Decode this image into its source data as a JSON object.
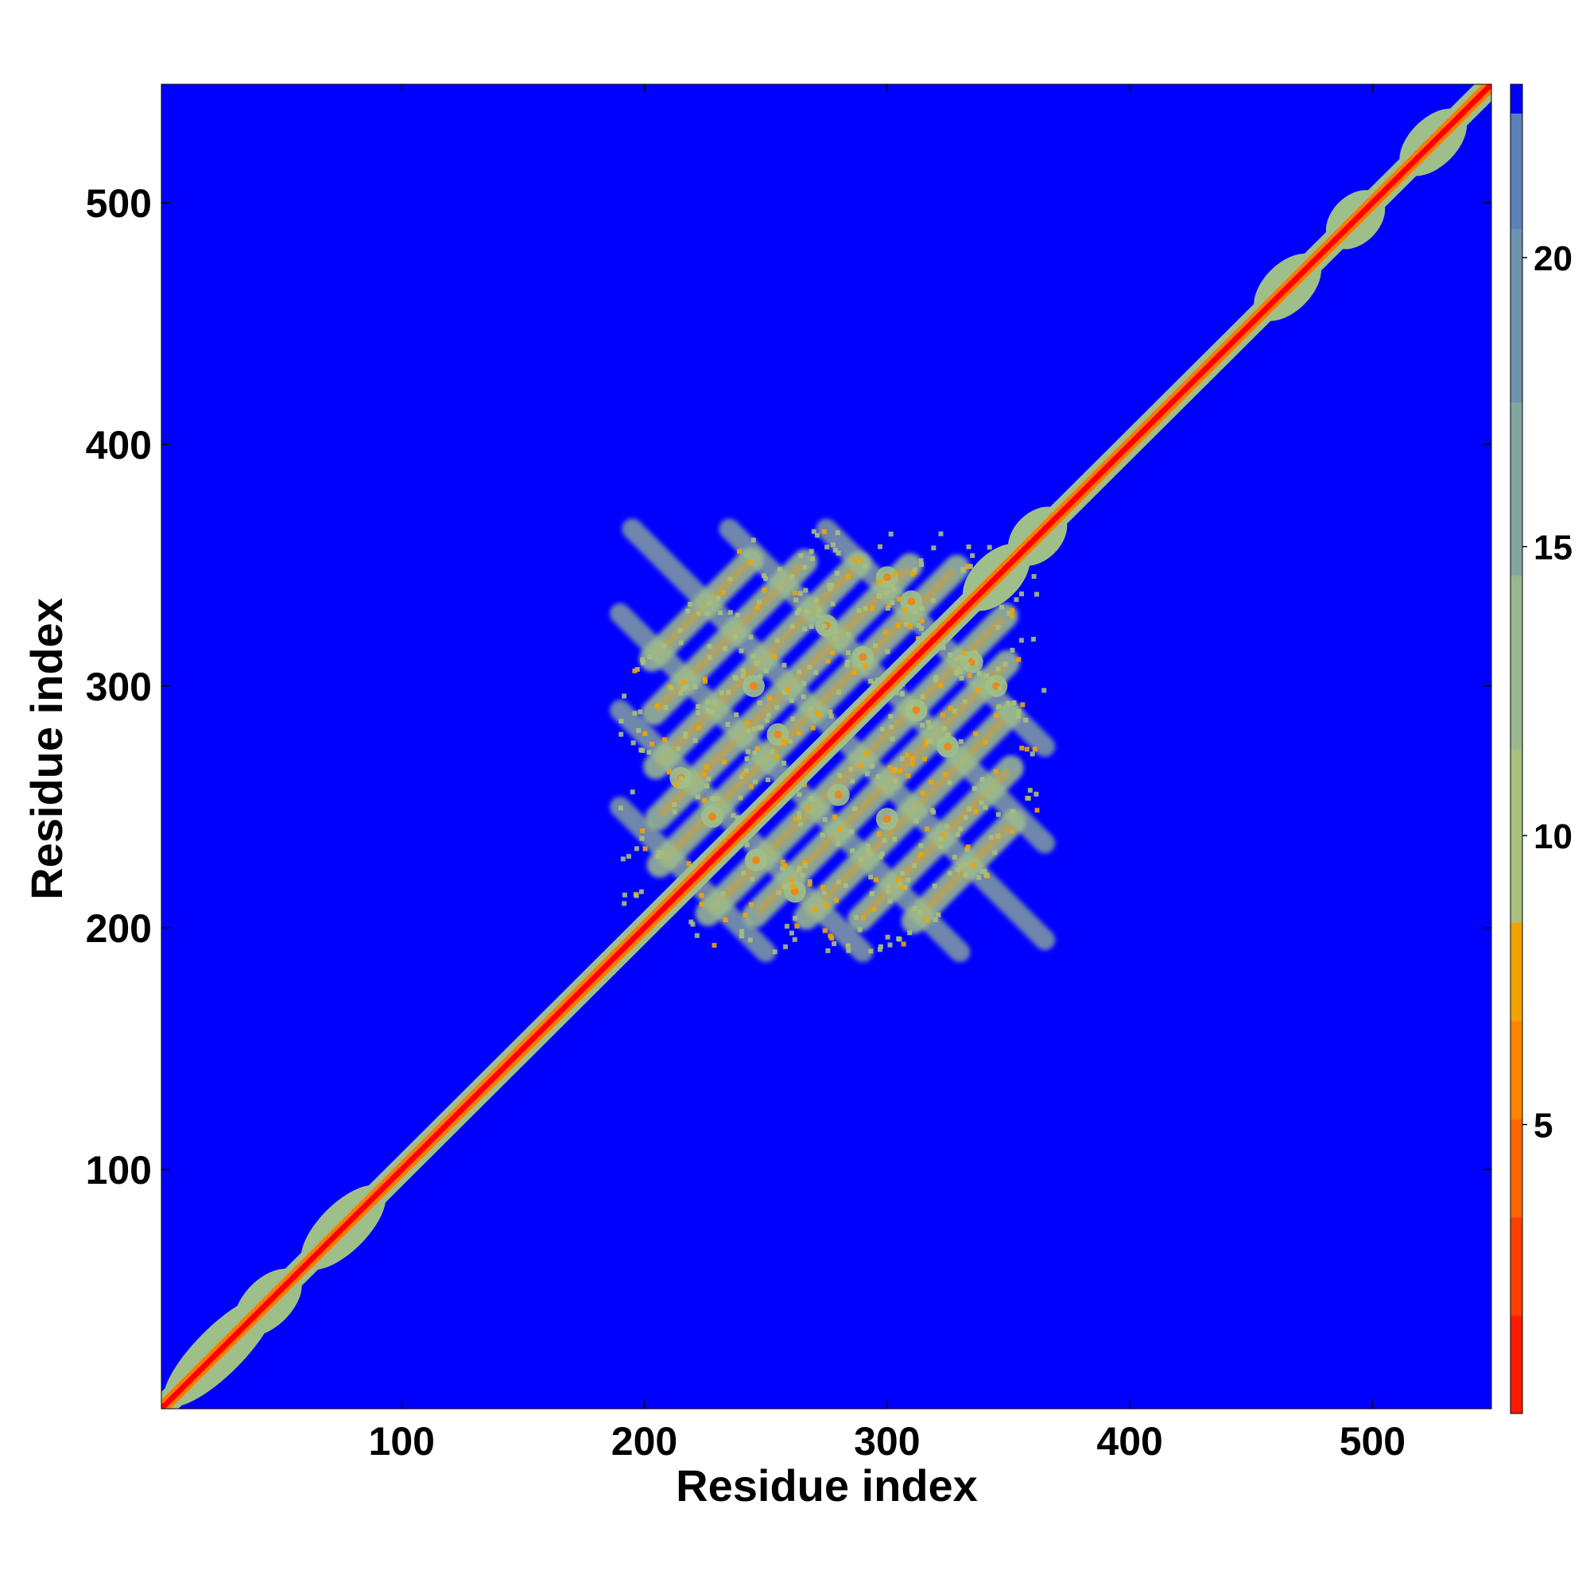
{
  "chart_data": {
    "type": "heatmap",
    "title": "",
    "xlabel": "Residue index",
    "ylabel": "Residue index",
    "xlim": [
      1,
      549
    ],
    "ylim": [
      1,
      549
    ],
    "xticks": [
      100,
      200,
      300,
      400,
      500
    ],
    "yticks": [
      100,
      200,
      300,
      400,
      500
    ],
    "grid": false,
    "colorbar": {
      "ticks": [
        5,
        10,
        15,
        20
      ],
      "range": [
        0,
        23
      ],
      "levels": [
        {
          "from": 0,
          "to": 1.7,
          "color": "#ff1a00"
        },
        {
          "from": 1.7,
          "to": 3.4,
          "color": "#ff3f00"
        },
        {
          "from": 3.4,
          "to": 5.1,
          "color": "#ff6600"
        },
        {
          "from": 5.1,
          "to": 6.8,
          "color": "#ff8400"
        },
        {
          "from": 6.8,
          "to": 8.5,
          "color": "#f2a300"
        },
        {
          "from": 8.5,
          "to": 11.5,
          "color": "#a8c07c"
        },
        {
          "from": 11.5,
          "to": 14.5,
          "color": "#99b88e"
        },
        {
          "from": 14.5,
          "to": 17.5,
          "color": "#82a7a0"
        },
        {
          "from": 17.5,
          "to": 20.5,
          "color": "#6c94b0"
        },
        {
          "from": 20.5,
          "to": 22.5,
          "color": "#5a82b8"
        },
        {
          "from": 22.5,
          "to": 23,
          "color": "#0000ff"
        }
      ]
    },
    "background_color": "#0000ff",
    "diagonal": {
      "start": 1,
      "end": 549,
      "core_color": "#ff0000",
      "halo_color": "#ff7a00",
      "edge_color": "#9fbf8a"
    },
    "diagonal_blobs": [
      {
        "center": 25,
        "half_length": 22
      },
      {
        "center": 45,
        "half_length": 12
      },
      {
        "center": 76,
        "half_length": 16
      },
      {
        "center": 345,
        "half_length": 12
      },
      {
        "center": 362,
        "half_length": 10
      },
      {
        "center": 465,
        "half_length": 12
      },
      {
        "center": 493,
        "half_length": 10
      },
      {
        "center": 525,
        "half_length": 12
      }
    ],
    "contact_region": {
      "x_range": [
        190,
        365
      ],
      "y_range": [
        190,
        365
      ]
    },
    "contact_bands": [
      {
        "offset": 20
      },
      {
        "offset": 40
      },
      {
        "offset": 62
      },
      {
        "offset": 85
      },
      {
        "offset": 108
      },
      {
        "offset": -20
      },
      {
        "offset": -40
      },
      {
        "offset": -62
      },
      {
        "offset": -85
      },
      {
        "offset": -108
      }
    ],
    "antiparallel_lines": [
      {
        "sum": 440
      },
      {
        "sum": 480
      },
      {
        "sum": 520
      },
      {
        "sum": 560
      },
      {
        "sum": 600
      },
      {
        "sum": 640
      }
    ],
    "contact_hotspots": [
      {
        "x": 228,
        "y": 246
      },
      {
        "x": 246,
        "y": 228
      },
      {
        "x": 255,
        "y": 280
      },
      {
        "x": 280,
        "y": 255
      },
      {
        "x": 290,
        "y": 312
      },
      {
        "x": 312,
        "y": 290
      },
      {
        "x": 310,
        "y": 335
      },
      {
        "x": 335,
        "y": 310
      },
      {
        "x": 215,
        "y": 262
      },
      {
        "x": 262,
        "y": 215
      },
      {
        "x": 245,
        "y": 300
      },
      {
        "x": 300,
        "y": 245
      },
      {
        "x": 275,
        "y": 325
      },
      {
        "x": 325,
        "y": 275
      },
      {
        "x": 300,
        "y": 345
      },
      {
        "x": 345,
        "y": 300
      }
    ]
  }
}
